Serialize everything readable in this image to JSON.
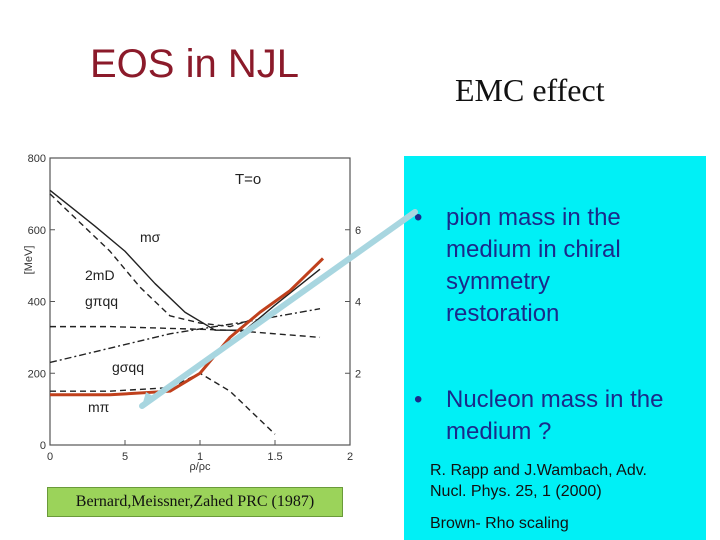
{
  "slide": {
    "title_left": "EOS in NJL",
    "title_right": "EMC effect",
    "accent_color": "#8b1a2a",
    "panel_color": "#00f0f6",
    "bullets": [
      {
        "marker": "•",
        "text": "pion mass in the\nmedium in chiral\nsymmetry\nrestoration"
      },
      {
        "marker": "•",
        "text": "Nucleon mass in the\nmedium ?"
      }
    ],
    "citation": "R. Rapp and J.Wambach, Adv.\nNucl. Phys. 25, 1 (2000)",
    "model_name": "Brown- Rho scaling",
    "reference_box": "Bernard,Meissner,Zahed PRC (1987)"
  },
  "chart_data": {
    "type": "line",
    "condition_label": "T=o",
    "xlabel": "ρ/ρc",
    "ylabel": "[MeV]",
    "xlim": [
      0,
      2
    ],
    "ylim": [
      0,
      800
    ],
    "y2lim": [
      0,
      8
    ],
    "x_ticks": [
      "0",
      "5",
      "1",
      "1.5",
      "2"
    ],
    "y_ticks": [
      "0",
      "200",
      "400",
      "600",
      "800"
    ],
    "y2_ticks": [
      "2",
      "4",
      "6"
    ],
    "series": [
      {
        "name": "mσ",
        "style": "solid",
        "x": [
          0,
          0.15,
          0.3,
          0.5,
          0.7,
          0.9,
          1.1,
          1.3,
          1.5,
          1.8
        ],
        "y": [
          710,
          660,
          610,
          540,
          450,
          370,
          320,
          320,
          390,
          490
        ]
      },
      {
        "name": "2mD",
        "style": "dashed",
        "x": [
          0,
          0.2,
          0.4,
          0.6,
          0.8,
          1.0,
          1.2,
          1.35
        ],
        "y": [
          700,
          620,
          540,
          440,
          360,
          340,
          330,
          350
        ]
      },
      {
        "name": "gπqq",
        "style": "dashed",
        "x": [
          0,
          0.4,
          0.8,
          1.2,
          1.5,
          1.8
        ],
        "y": [
          330,
          330,
          325,
          320,
          310,
          300
        ]
      },
      {
        "name": "gσqq",
        "style": "dashdot",
        "x": [
          0,
          0.4,
          0.8,
          1.1,
          1.4,
          1.8
        ],
        "y": [
          230,
          270,
          310,
          330,
          350,
          380
        ]
      },
      {
        "name": "mπ (dashed)",
        "style": "dashed",
        "x": [
          0,
          0.4,
          0.8,
          1.0,
          1.2,
          1.4,
          1.5
        ],
        "y": [
          150,
          150,
          160,
          200,
          150,
          70,
          30
        ]
      },
      {
        "name": "mπ",
        "style": "solid",
        "x": [
          0,
          0.4,
          0.8,
          1.0,
          1.2,
          1.4,
          1.6,
          1.82
        ],
        "y": [
          140,
          140,
          150,
          200,
          300,
          370,
          430,
          520
        ],
        "color": "#c0401c"
      }
    ],
    "arrow": {
      "from": "bullet-1",
      "to": "mπ curve"
    }
  }
}
